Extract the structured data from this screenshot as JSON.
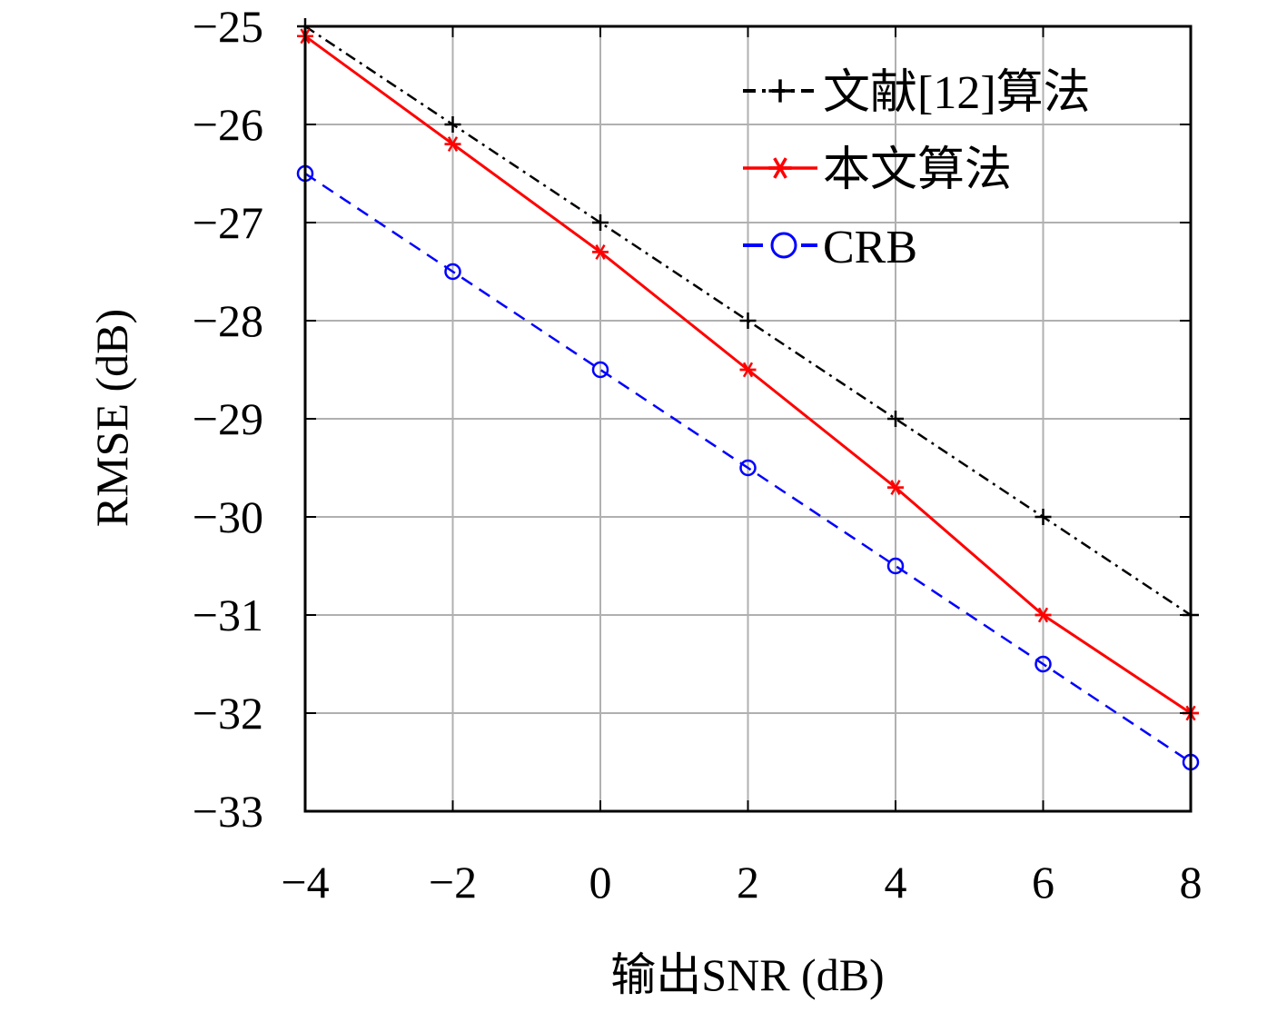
{
  "chart_data": {
    "type": "line",
    "title": "",
    "xlabel": "输出SNR (dB)",
    "ylabel": "RMSE (dB)",
    "xlim": [
      -4,
      8
    ],
    "ylim": [
      -33,
      -25
    ],
    "x_ticks": [
      -4,
      -2,
      0,
      2,
      4,
      6,
      8
    ],
    "x_tick_labels": [
      "−4",
      "−2",
      "0",
      "2",
      "4",
      "6",
      "8"
    ],
    "y_ticks": [
      -25,
      -26,
      -27,
      -28,
      -29,
      -30,
      -31,
      -32,
      -33
    ],
    "y_tick_labels": [
      "−25",
      "−26",
      "−27",
      "−28",
      "−29",
      "−30",
      "−31",
      "−32",
      "−33"
    ],
    "grid": true,
    "legend_position": "top-right",
    "x": [
      -4,
      -2,
      0,
      2,
      4,
      6,
      8
    ],
    "series": [
      {
        "name": "文献[12]算法",
        "values": [
          -25.0,
          -26.0,
          -27.0,
          -28.0,
          -29.0,
          -30.0,
          -31.0
        ],
        "color": "#000000",
        "marker": "plus",
        "line_style": "dash-dot"
      },
      {
        "name": "本文算法",
        "values": [
          -25.1,
          -26.2,
          -27.3,
          -28.5,
          -29.7,
          -31.0,
          -32.0
        ],
        "color": "#ff0000",
        "marker": "asterisk",
        "line_style": "solid"
      },
      {
        "name": "CRB",
        "values": [
          -26.5,
          -27.5,
          -28.5,
          -29.5,
          -30.5,
          -31.5,
          -32.5
        ],
        "color": "#0000ff",
        "marker": "circle",
        "line_style": "dashed"
      }
    ]
  }
}
